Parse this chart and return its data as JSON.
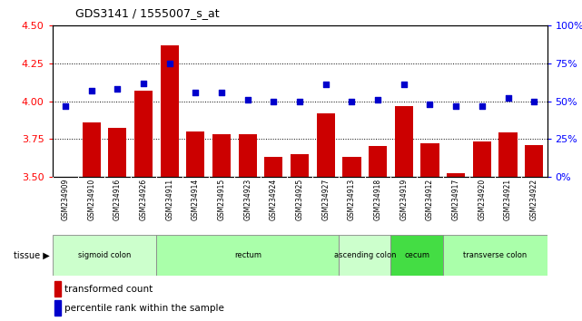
{
  "title": "GDS3141 / 1555007_s_at",
  "samples": [
    "GSM234909",
    "GSM234910",
    "GSM234916",
    "GSM234926",
    "GSM234911",
    "GSM234914",
    "GSM234915",
    "GSM234923",
    "GSM234924",
    "GSM234925",
    "GSM234927",
    "GSM234913",
    "GSM234918",
    "GSM234919",
    "GSM234912",
    "GSM234917",
    "GSM234920",
    "GSM234921",
    "GSM234922"
  ],
  "transformed_count": [
    3.5,
    3.86,
    3.82,
    4.07,
    4.37,
    3.8,
    3.78,
    3.78,
    3.63,
    3.65,
    3.92,
    3.63,
    3.7,
    3.97,
    3.72,
    3.52,
    3.73,
    3.79,
    3.71
  ],
  "percentile_rank": [
    47,
    57,
    58,
    62,
    75,
    56,
    56,
    51,
    50,
    50,
    61,
    50,
    51,
    61,
    48,
    47,
    47,
    52,
    50
  ],
  "ylim_left": [
    3.5,
    4.5
  ],
  "ylim_right": [
    0,
    100
  ],
  "yticks_left": [
    3.5,
    3.75,
    4.0,
    4.25,
    4.5
  ],
  "yticks_right": [
    0,
    25,
    50,
    75,
    100
  ],
  "ytick_labels_right": [
    "0%",
    "25%",
    "50%",
    "75%",
    "100%"
  ],
  "grid_lines": [
    3.75,
    4.0,
    4.25
  ],
  "bar_color": "#cc0000",
  "dot_color": "#0000cc",
  "tissue_groups": [
    {
      "label": "sigmoid colon",
      "start": 0,
      "end": 4,
      "color": "#ccffcc"
    },
    {
      "label": "rectum",
      "start": 4,
      "end": 11,
      "color": "#aaffaa"
    },
    {
      "label": "ascending colon",
      "start": 11,
      "end": 13,
      "color": "#ccffcc"
    },
    {
      "label": "cecum",
      "start": 13,
      "end": 15,
      "color": "#44dd44"
    },
    {
      "label": "transverse colon",
      "start": 15,
      "end": 19,
      "color": "#aaffaa"
    }
  ],
  "xlabel_tissue": "tissue",
  "legend_bar_label": "transformed count",
  "legend_dot_label": "percentile rank within the sample",
  "tick_area_color": "#c8c8c8"
}
